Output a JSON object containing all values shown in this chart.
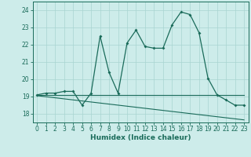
{
  "xlabel": "Humidex (Indice chaleur)",
  "bg_color": "#cdecea",
  "grid_color": "#a8d5d1",
  "line_color": "#1a6b5a",
  "xlim": [
    -0.5,
    23.5
  ],
  "ylim": [
    17.5,
    24.5
  ],
  "xticks": [
    0,
    1,
    2,
    3,
    4,
    5,
    6,
    7,
    8,
    9,
    10,
    11,
    12,
    13,
    14,
    15,
    16,
    17,
    18,
    19,
    20,
    21,
    22,
    23
  ],
  "yticks": [
    18,
    19,
    20,
    21,
    22,
    23,
    24
  ],
  "line1_x": [
    0,
    1,
    2,
    3,
    4,
    5,
    6,
    7,
    8,
    9,
    10,
    11,
    12,
    13,
    14,
    15,
    16,
    17,
    18,
    19,
    20,
    21,
    22,
    23
  ],
  "line1_y": [
    19.1,
    19.2,
    19.2,
    19.3,
    19.3,
    18.5,
    19.2,
    22.5,
    20.4,
    19.2,
    22.1,
    22.85,
    21.9,
    21.8,
    21.8,
    23.15,
    23.9,
    23.75,
    22.7,
    20.05,
    19.1,
    18.8,
    18.5,
    18.5
  ],
  "line2_x": [
    0,
    23
  ],
  "line2_y": [
    19.1,
    19.1
  ],
  "line3_x": [
    0,
    23
  ],
  "line3_y": [
    19.05,
    17.65
  ]
}
